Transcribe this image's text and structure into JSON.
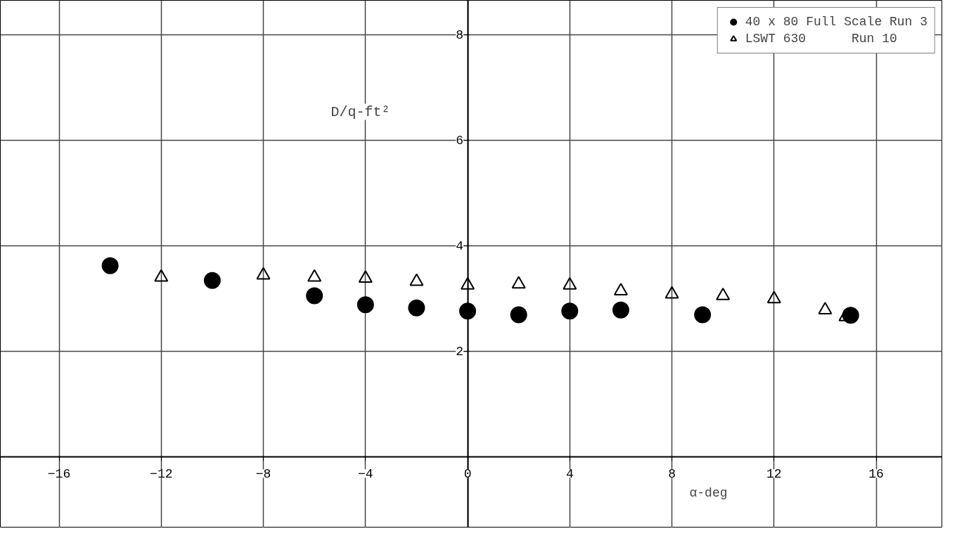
{
  "chart_data": {
    "type": "scatter",
    "xlabel": "α-deg",
    "ylabel": "D/q-ft²",
    "xlim": [
      -18.3,
      18.6
    ],
    "ylim": [
      -1.35,
      8.65
    ],
    "xticks": [
      -16,
      -12,
      -8,
      -4,
      0,
      4,
      8,
      12,
      16
    ],
    "yticks": [
      2,
      4,
      6,
      8
    ],
    "grid": true,
    "legend": "top right",
    "series": [
      {
        "name": "40 x 80 Full Scale Run 3",
        "color": "#000000",
        "marker": "circle",
        "x": [
          -14,
          -10,
          -6,
          -4,
          -2,
          0,
          2,
          4,
          6,
          9.2,
          15
        ],
        "values": [
          3.62,
          3.34,
          3.05,
          2.88,
          2.82,
          2.76,
          2.69,
          2.76,
          2.78,
          2.69,
          2.68
        ]
      },
      {
        "name": "LSWT 630      Run 10",
        "color": "#000000",
        "marker": "triangle",
        "x": [
          -12,
          -8,
          -6,
          -4,
          -2,
          0,
          2,
          4,
          6,
          8,
          10,
          12,
          14,
          14.8
        ],
        "values": [
          3.4,
          3.44,
          3.4,
          3.38,
          3.32,
          3.25,
          3.27,
          3.25,
          3.14,
          3.08,
          3.05,
          2.99,
          2.78,
          2.65
        ]
      }
    ]
  }
}
